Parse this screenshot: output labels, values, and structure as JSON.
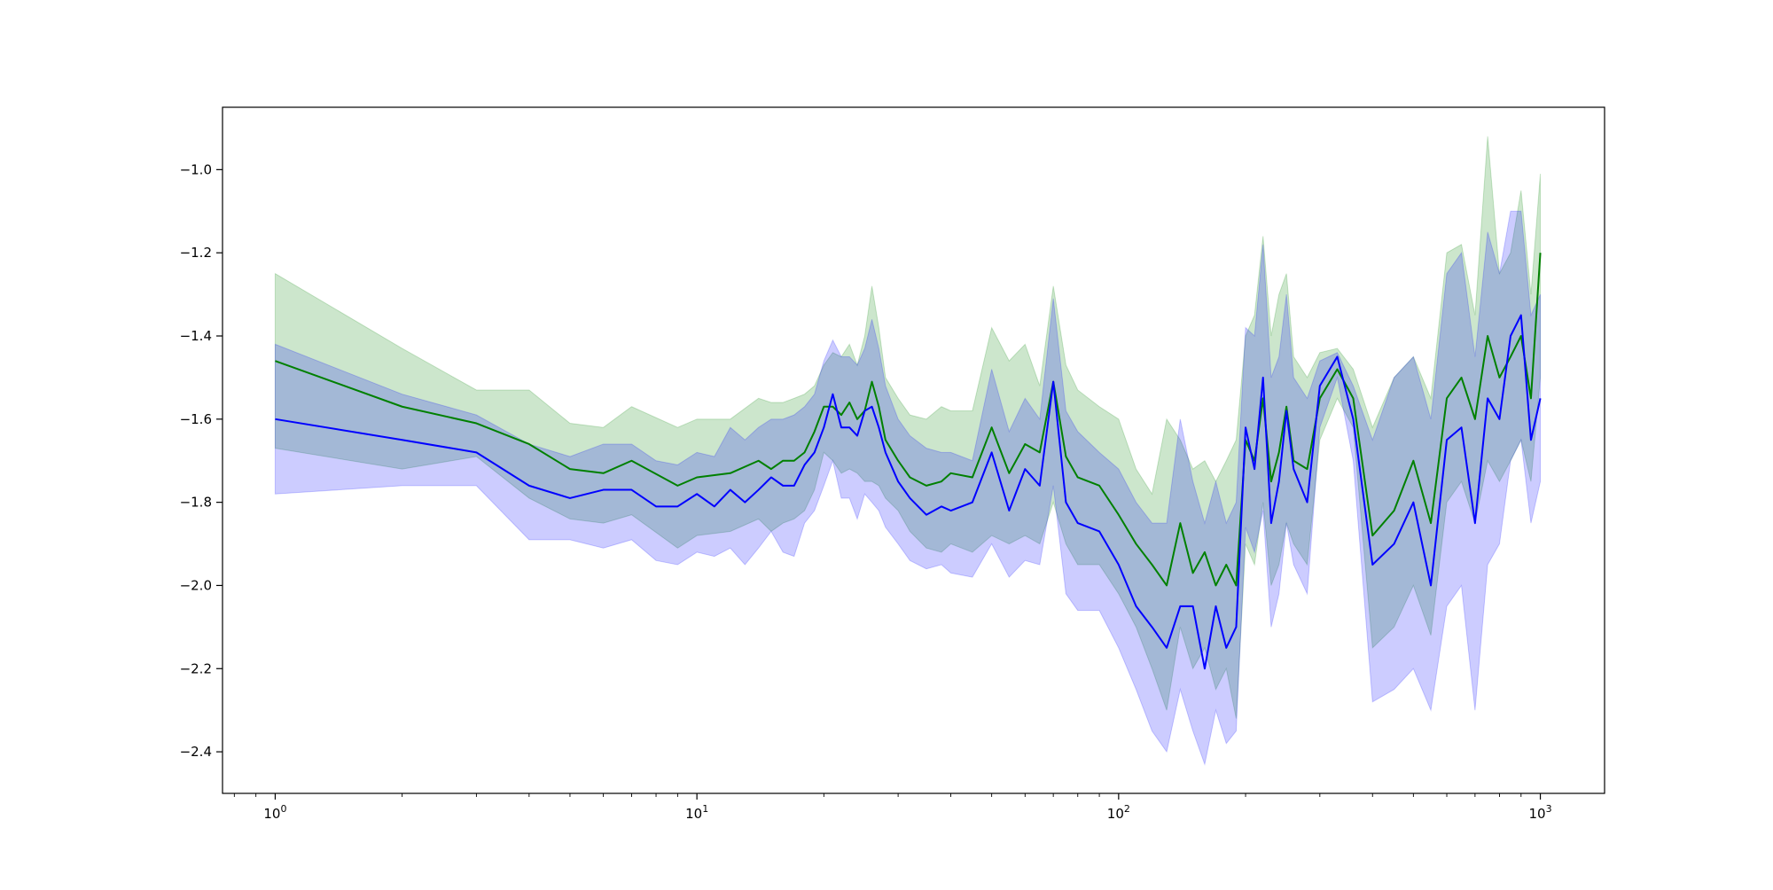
{
  "chart_data": {
    "type": "line",
    "title": "",
    "xlabel": "",
    "ylabel": "",
    "xscale": "log",
    "xlim": [
      0.75,
      1420
    ],
    "ylim": [
      -2.5,
      -0.85
    ],
    "grid": false,
    "legend": "none",
    "x_ticks": [
      {
        "value": 1,
        "base": "10",
        "exp": "0"
      },
      {
        "value": 10,
        "base": "10",
        "exp": "1"
      },
      {
        "value": 100,
        "base": "10",
        "exp": "2"
      },
      {
        "value": 1000,
        "base": "10",
        "exp": "3"
      }
    ],
    "y_ticks": [
      {
        "value": -1.0,
        "label": "−1.0"
      },
      {
        "value": -1.2,
        "label": "−1.2"
      },
      {
        "value": -1.4,
        "label": "−1.4"
      },
      {
        "value": -1.6,
        "label": "−1.6"
      },
      {
        "value": -1.8,
        "label": "−1.8"
      },
      {
        "value": -2.0,
        "label": "−2.0"
      },
      {
        "value": -2.2,
        "label": "−2.2"
      },
      {
        "value": -2.4,
        "label": "−2.4"
      }
    ],
    "series": [
      {
        "color": "#008000",
        "band_color": "#008000",
        "band_opacity": 0.2,
        "x": [
          1,
          2,
          3,
          4,
          5,
          6,
          7,
          9,
          10,
          12,
          14,
          15,
          16,
          17,
          18,
          19,
          20,
          21,
          22,
          23,
          24,
          25,
          26,
          27,
          28,
          30,
          32,
          35,
          38,
          40,
          45,
          50,
          55,
          60,
          65,
          70,
          75,
          80,
          90,
          100,
          110,
          120,
          130,
          140,
          150,
          160,
          170,
          180,
          190,
          200,
          210,
          220,
          230,
          240,
          250,
          260,
          280,
          300,
          330,
          360,
          400,
          450,
          500,
          550,
          600,
          650,
          700,
          750,
          800,
          850,
          900,
          950,
          1000
        ],
        "y": [
          -1.46,
          -1.57,
          -1.61,
          -1.66,
          -1.72,
          -1.73,
          -1.7,
          -1.76,
          -1.74,
          -1.73,
          -1.7,
          -1.72,
          -1.7,
          -1.7,
          -1.68,
          -1.63,
          -1.57,
          -1.57,
          -1.59,
          -1.56,
          -1.6,
          -1.58,
          -1.51,
          -1.57,
          -1.65,
          -1.7,
          -1.74,
          -1.76,
          -1.75,
          -1.73,
          -1.74,
          -1.62,
          -1.73,
          -1.66,
          -1.68,
          -1.51,
          -1.69,
          -1.74,
          -1.76,
          -1.83,
          -1.9,
          -1.95,
          -2.0,
          -1.85,
          -1.97,
          -1.92,
          -2.0,
          -1.95,
          -2.0,
          -1.65,
          -1.7,
          -1.55,
          -1.75,
          -1.68,
          -1.57,
          -1.7,
          -1.72,
          -1.55,
          -1.48,
          -1.55,
          -1.88,
          -1.82,
          -1.7,
          -1.85,
          -1.55,
          -1.5,
          -1.6,
          -1.4,
          -1.5,
          -1.45,
          -1.4,
          -1.55,
          -1.2
        ],
        "upper": [
          -1.25,
          -1.43,
          -1.53,
          -1.53,
          -1.61,
          -1.62,
          -1.57,
          -1.62,
          -1.6,
          -1.6,
          -1.55,
          -1.56,
          -1.56,
          -1.55,
          -1.54,
          -1.52,
          -1.47,
          -1.44,
          -1.45,
          -1.42,
          -1.47,
          -1.4,
          -1.28,
          -1.38,
          -1.5,
          -1.55,
          -1.59,
          -1.6,
          -1.57,
          -1.58,
          -1.58,
          -1.38,
          -1.46,
          -1.42,
          -1.52,
          -1.28,
          -1.47,
          -1.53,
          -1.57,
          -1.6,
          -1.72,
          -1.78,
          -1.6,
          -1.65,
          -1.72,
          -1.7,
          -1.75,
          -1.7,
          -1.65,
          -1.4,
          -1.35,
          -1.16,
          -1.4,
          -1.3,
          -1.25,
          -1.45,
          -1.5,
          -1.44,
          -1.43,
          -1.48,
          -1.62,
          -1.5,
          -1.45,
          -1.55,
          -1.2,
          -1.18,
          -1.35,
          -0.92,
          -1.25,
          -1.2,
          -1.05,
          -1.3,
          -1.01
        ],
        "lower": [
          -1.67,
          -1.72,
          -1.69,
          -1.79,
          -1.84,
          -1.85,
          -1.83,
          -1.91,
          -1.88,
          -1.87,
          -1.84,
          -1.87,
          -1.85,
          -1.84,
          -1.82,
          -1.77,
          -1.68,
          -1.7,
          -1.73,
          -1.72,
          -1.73,
          -1.75,
          -1.75,
          -1.76,
          -1.79,
          -1.82,
          -1.87,
          -1.91,
          -1.92,
          -1.9,
          -1.92,
          -1.88,
          -1.9,
          -1.88,
          -1.9,
          -1.8,
          -1.9,
          -1.95,
          -1.95,
          -2.02,
          -2.1,
          -2.2,
          -2.3,
          -2.1,
          -2.2,
          -2.15,
          -2.25,
          -2.2,
          -2.32,
          -1.9,
          -1.95,
          -1.8,
          -2.0,
          -1.95,
          -1.85,
          -1.9,
          -1.95,
          -1.65,
          -1.55,
          -1.62,
          -2.15,
          -2.1,
          -2.0,
          -2.12,
          -1.8,
          -1.75,
          -1.85,
          -1.7,
          -1.75,
          -1.7,
          -1.65,
          -1.75,
          -1.5
        ]
      },
      {
        "color": "#0000ff",
        "band_color": "#0000ff",
        "band_opacity": 0.2,
        "x": [
          1,
          2,
          3,
          4,
          5,
          6,
          7,
          8,
          9,
          10,
          11,
          12,
          13,
          14,
          15,
          16,
          17,
          18,
          19,
          20,
          21,
          22,
          23,
          24,
          25,
          26,
          27,
          28,
          30,
          32,
          35,
          38,
          40,
          45,
          50,
          55,
          60,
          65,
          70,
          75,
          80,
          90,
          100,
          110,
          120,
          130,
          140,
          150,
          160,
          170,
          180,
          190,
          200,
          210,
          220,
          230,
          240,
          250,
          260,
          280,
          300,
          330,
          360,
          400,
          450,
          500,
          550,
          600,
          650,
          700,
          750,
          800,
          850,
          900,
          950,
          1000
        ],
        "y": [
          -1.6,
          -1.65,
          -1.68,
          -1.76,
          -1.79,
          -1.77,
          -1.77,
          -1.81,
          -1.81,
          -1.78,
          -1.81,
          -1.77,
          -1.8,
          -1.77,
          -1.74,
          -1.76,
          -1.76,
          -1.71,
          -1.68,
          -1.62,
          -1.54,
          -1.62,
          -1.62,
          -1.64,
          -1.58,
          -1.57,
          -1.62,
          -1.68,
          -1.75,
          -1.79,
          -1.83,
          -1.81,
          -1.82,
          -1.8,
          -1.68,
          -1.82,
          -1.72,
          -1.76,
          -1.51,
          -1.8,
          -1.85,
          -1.87,
          -1.95,
          -2.05,
          -2.1,
          -2.15,
          -2.05,
          -2.05,
          -2.2,
          -2.05,
          -2.15,
          -2.1,
          -1.62,
          -1.72,
          -1.5,
          -1.85,
          -1.75,
          -1.58,
          -1.72,
          -1.8,
          -1.52,
          -1.45,
          -1.6,
          -1.95,
          -1.9,
          -1.8,
          -2.0,
          -1.65,
          -1.62,
          -1.85,
          -1.55,
          -1.6,
          -1.4,
          -1.35,
          -1.65,
          -1.55
        ],
        "upper": [
          -1.42,
          -1.54,
          -1.59,
          -1.66,
          -1.69,
          -1.66,
          -1.66,
          -1.7,
          -1.71,
          -1.68,
          -1.69,
          -1.62,
          -1.65,
          -1.62,
          -1.6,
          -1.6,
          -1.59,
          -1.57,
          -1.54,
          -1.46,
          -1.41,
          -1.45,
          -1.45,
          -1.47,
          -1.43,
          -1.36,
          -1.43,
          -1.52,
          -1.6,
          -1.64,
          -1.67,
          -1.68,
          -1.68,
          -1.7,
          -1.48,
          -1.63,
          -1.55,
          -1.6,
          -1.31,
          -1.58,
          -1.63,
          -1.68,
          -1.72,
          -1.8,
          -1.85,
          -1.85,
          -1.6,
          -1.75,
          -1.85,
          -1.75,
          -1.85,
          -1.8,
          -1.38,
          -1.4,
          -1.18,
          -1.5,
          -1.45,
          -1.3,
          -1.5,
          -1.55,
          -1.46,
          -1.44,
          -1.52,
          -1.65,
          -1.5,
          -1.45,
          -1.6,
          -1.25,
          -1.2,
          -1.45,
          -1.15,
          -1.25,
          -1.1,
          -1.1,
          -1.35,
          -1.3
        ],
        "lower": [
          -1.78,
          -1.76,
          -1.76,
          -1.89,
          -1.89,
          -1.91,
          -1.89,
          -1.94,
          -1.95,
          -1.92,
          -1.93,
          -1.91,
          -1.95,
          -1.91,
          -1.87,
          -1.92,
          -1.93,
          -1.85,
          -1.82,
          -1.76,
          -1.7,
          -1.79,
          -1.79,
          -1.84,
          -1.78,
          -1.8,
          -1.82,
          -1.86,
          -1.9,
          -1.94,
          -1.96,
          -1.95,
          -1.97,
          -1.98,
          -1.9,
          -1.98,
          -1.94,
          -1.95,
          -1.76,
          -2.02,
          -2.06,
          -2.06,
          -2.15,
          -2.25,
          -2.35,
          -2.4,
          -2.25,
          -2.35,
          -2.43,
          -2.3,
          -2.38,
          -2.35,
          -1.86,
          -1.92,
          -1.82,
          -2.1,
          -2.02,
          -1.85,
          -1.95,
          -2.02,
          -1.62,
          -1.5,
          -1.7,
          -2.28,
          -2.25,
          -2.2,
          -2.3,
          -2.05,
          -2.0,
          -2.3,
          -1.95,
          -1.9,
          -1.7,
          -1.65,
          -1.85,
          -1.75
        ]
      }
    ]
  }
}
